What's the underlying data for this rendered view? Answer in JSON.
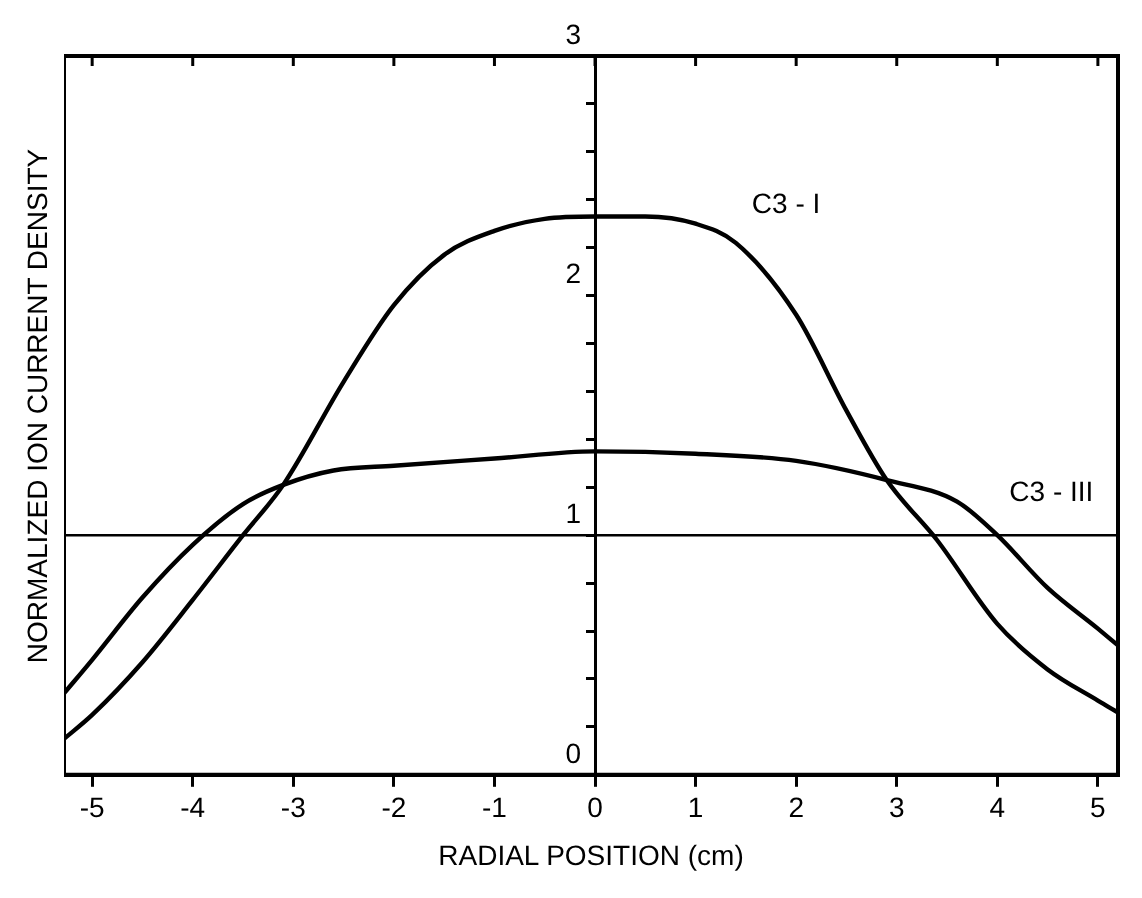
{
  "chart_data": {
    "type": "line",
    "xlabel": "RADIAL POSITION (cm)",
    "ylabel": "NORMALIZED ION CURRENT DENSITY",
    "xlim": [
      -5.28,
      5.2
    ],
    "xticks": [
      -5,
      -4,
      -3,
      -2,
      -1,
      0,
      1,
      2,
      3,
      4,
      5
    ],
    "ylim": [
      0,
      3
    ],
    "yticks": [
      0,
      {
        "value": 0.2,
        "label": null
      },
      {
        "value": 0.4,
        "label": null
      },
      {
        "value": 0.6,
        "label": null
      },
      {
        "value": 0.8,
        "label": null
      },
      1,
      {
        "value": 1.2,
        "label": null
      },
      {
        "value": 1.4,
        "label": null
      },
      {
        "value": 1.6,
        "label": null
      },
      {
        "value": 1.8,
        "label": null
      },
      2,
      {
        "value": 2.2,
        "label": null
      },
      {
        "value": 2.4,
        "label": null
      },
      {
        "value": 2.6,
        "label": null
      },
      {
        "value": 2.8,
        "label": null
      },
      3
    ],
    "grid": false,
    "legend": false,
    "marker": "none",
    "line_style": "solid",
    "ref_lines": [
      {
        "axis": "y",
        "value": 1,
        "color": "#000000"
      }
    ],
    "series": [
      {
        "name": "C3 - I",
        "color": "#000000",
        "x": [
          -5.28,
          -5,
          -4.5,
          -4,
          -3.5,
          -3.1,
          -2.5,
          -2,
          -1.5,
          -1,
          -0.5,
          0,
          0.5,
          1,
          1.4,
          2,
          2.5,
          2.9,
          3.4,
          4,
          4.5,
          5,
          5.2
        ],
        "values": [
          0.15,
          0.25,
          0.47,
          0.73,
          1.0,
          1.21,
          1.64,
          1.96,
          2.17,
          2.27,
          2.32,
          2.33,
          2.33,
          2.3,
          2.22,
          1.92,
          1.52,
          1.23,
          0.98,
          0.63,
          0.44,
          0.31,
          0.26
        ]
      },
      {
        "name": "C3 - III",
        "color": "#000000",
        "x": [
          -5.28,
          -5,
          -4.5,
          -4,
          -3.5,
          -3.1,
          -2.6,
          -2,
          -1,
          0,
          1,
          2,
          2.9,
          3.6,
          4,
          4.5,
          5,
          5.2
        ],
        "values": [
          0.34,
          0.48,
          0.74,
          0.96,
          1.13,
          1.21,
          1.27,
          1.29,
          1.32,
          1.35,
          1.34,
          1.31,
          1.23,
          1.14,
          1.0,
          0.78,
          0.61,
          0.54
        ]
      }
    ]
  }
}
